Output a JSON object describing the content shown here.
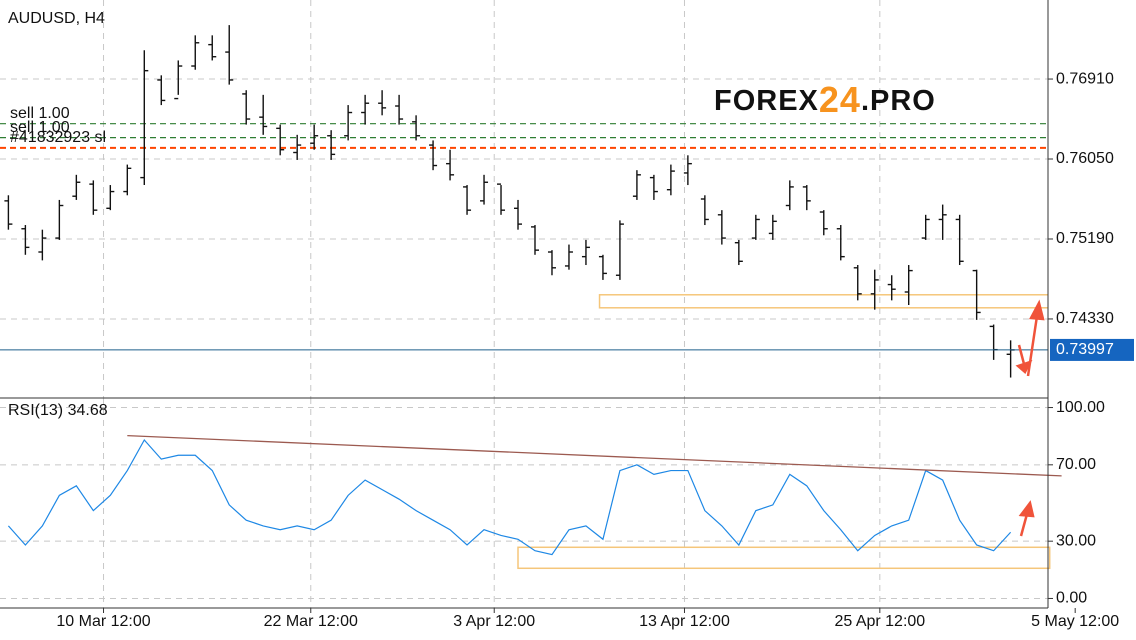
{
  "brand": {
    "part1": "FOREX",
    "part2": "24",
    "part3": ".PRO"
  },
  "chart_data": [
    {
      "type": "ohlc",
      "title": "AUDUSD, H4",
      "open": [
        0.756,
        0.753,
        0.7505,
        0.752,
        0.7565,
        0.7578,
        0.7552,
        0.757,
        0.7585,
        0.769,
        0.767,
        0.7705,
        0.7728,
        0.772,
        0.7675,
        0.765,
        0.7638,
        0.7612,
        0.7622,
        0.763,
        0.763,
        0.7655,
        0.7665,
        0.7662,
        0.7645,
        0.762,
        0.76,
        0.7575,
        0.756,
        0.7578,
        0.7552,
        0.7532,
        0.7505,
        0.749,
        0.75,
        0.75,
        0.748,
        0.7565,
        0.7585,
        0.7572,
        0.759,
        0.7562,
        0.7545,
        0.7515,
        0.752,
        0.7525,
        0.7555,
        0.7575,
        0.7548,
        0.753,
        0.7488,
        0.746,
        0.747,
        0.7462,
        0.752,
        0.754,
        0.754,
        0.7485,
        0.7425,
        0.7395
      ],
      "high": [
        0.7566,
        0.7534,
        0.7529,
        0.7561,
        0.7588,
        0.7582,
        0.7577,
        0.7599,
        0.7722,
        0.7695,
        0.7711,
        0.7738,
        0.7738,
        0.7749,
        0.7679,
        0.7674,
        0.7642,
        0.7631,
        0.7642,
        0.7636,
        0.7663,
        0.7674,
        0.7679,
        0.7674,
        0.7652,
        0.7625,
        0.7615,
        0.7577,
        0.7588,
        0.7577,
        0.7561,
        0.7534,
        0.7507,
        0.7513,
        0.7518,
        0.7502,
        0.7539,
        0.7593,
        0.7588,
        0.7599,
        0.7609,
        0.7566,
        0.755,
        0.7518,
        0.7545,
        0.7545,
        0.7582,
        0.7577,
        0.755,
        0.7534,
        0.7491,
        0.7486,
        0.748,
        0.7491,
        0.7545,
        0.7556,
        0.7545,
        0.7486,
        0.7427,
        0.741
      ],
      "low": [
        0.7529,
        0.7502,
        0.7496,
        0.7518,
        0.7561,
        0.7545,
        0.755,
        0.7566,
        0.7577,
        0.7663,
        0.7674,
        0.7701,
        0.7711,
        0.7685,
        0.7642,
        0.7631,
        0.7609,
        0.7604,
        0.7615,
        0.7604,
        0.7625,
        0.7642,
        0.7652,
        0.7642,
        0.7625,
        0.7593,
        0.7582,
        0.7545,
        0.7556,
        0.7545,
        0.7529,
        0.7502,
        0.748,
        0.7486,
        0.7491,
        0.7475,
        0.7475,
        0.7561,
        0.7561,
        0.7566,
        0.7577,
        0.7534,
        0.7513,
        0.7491,
        0.7518,
        0.7518,
        0.755,
        0.755,
        0.7523,
        0.7496,
        0.7453,
        0.7443,
        0.7453,
        0.7448,
        0.7518,
        0.7518,
        0.7491,
        0.7432,
        0.7389,
        0.737
      ],
      "close": [
        0.7535,
        0.751,
        0.752,
        0.7555,
        0.758,
        0.755,
        0.757,
        0.7595,
        0.77,
        0.7668,
        0.7705,
        0.773,
        0.7715,
        0.769,
        0.7648,
        0.764,
        0.7615,
        0.762,
        0.763,
        0.761,
        0.7655,
        0.7665,
        0.766,
        0.7648,
        0.763,
        0.7598,
        0.7588,
        0.755,
        0.758,
        0.755,
        0.7535,
        0.7507,
        0.7488,
        0.7505,
        0.751,
        0.7482,
        0.7535,
        0.7588,
        0.757,
        0.7592,
        0.76,
        0.754,
        0.752,
        0.7495,
        0.754,
        0.7538,
        0.7575,
        0.756,
        0.753,
        0.75,
        0.746,
        0.7475,
        0.7465,
        0.7485,
        0.754,
        0.7545,
        0.7495,
        0.744,
        0.74,
        0.73997
      ],
      "color": "#111111",
      "xlim": [
        -0.2,
        61.2
      ],
      "ylim": [
        0.7348,
        0.7776
      ],
      "yticks": [
        {
          "value": 0.7691,
          "label": "0.76910"
        },
        {
          "value": 0.7605,
          "label": "0.76050"
        },
        {
          "value": 0.7519,
          "label": "0.75190"
        },
        {
          "value": 0.7433,
          "label": "0.74330"
        }
      ],
      "grid": true,
      "levels": [
        {
          "label": "sell 1.00",
          "value": 0.7643,
          "color": "#2e7d32"
        },
        {
          "label": "sell 1.00",
          "value": 0.7628,
          "color": "#2e7d32"
        },
        {
          "label": "#41832923 sl",
          "value": 0.7617,
          "color": "#ff4500"
        }
      ],
      "current_price": {
        "value": 0.73997,
        "label": "0.73997",
        "color": "#1565c0"
      },
      "zones": [
        {
          "x0": 34.8,
          "x1": 65.4,
          "top": 0.7459,
          "bottom": 0.7445,
          "color": "#f5c67a"
        }
      ]
    },
    {
      "type": "line",
      "title": "RSI(13) 34.68",
      "values": [
        38,
        28,
        38,
        54,
        59,
        46,
        54,
        67,
        83,
        73,
        75,
        75,
        67,
        49,
        41,
        38,
        36,
        38,
        36,
        41,
        54,
        62,
        57,
        52,
        46,
        41,
        36,
        28,
        36,
        33,
        31,
        25,
        23,
        36,
        38,
        31,
        67,
        70,
        65,
        67,
        67,
        46,
        38,
        28,
        46,
        49,
        65,
        59,
        46,
        36,
        25,
        33,
        38,
        41,
        67,
        62,
        41,
        28,
        25,
        34.68
      ],
      "color": "#1e88e5",
      "xlim": [
        -0.2,
        61.2
      ],
      "ylim": [
        -5,
        105
      ],
      "yticks": [
        {
          "value": 100,
          "label": "100.00"
        },
        {
          "value": 70,
          "label": "70.00"
        },
        {
          "value": 30,
          "label": "30.00"
        },
        {
          "value": 0,
          "label": "0.00"
        }
      ],
      "xticks": [
        {
          "value": 5.6,
          "label": "10 Mar 12:00"
        },
        {
          "value": 17.8,
          "label": "22 Mar 12:00"
        },
        {
          "value": 28.6,
          "label": "3 Apr 12:00"
        },
        {
          "value": 39.8,
          "label": "13 Apr 12:00"
        },
        {
          "value": 51.3,
          "label": "25 Apr 12:00"
        },
        {
          "value": 62.8,
          "label": "5 May 12:00"
        }
      ],
      "grid": true,
      "trendline": {
        "x": [
          7.0,
          62.0
        ],
        "y": [
          85.3,
          64.2
        ],
        "color": "#9c5a50"
      },
      "zones": [
        {
          "x0": 30.0,
          "x1": 61.3,
          "top": 26.8,
          "bottom": 15.8,
          "color": "#f5c67a"
        }
      ]
    }
  ]
}
